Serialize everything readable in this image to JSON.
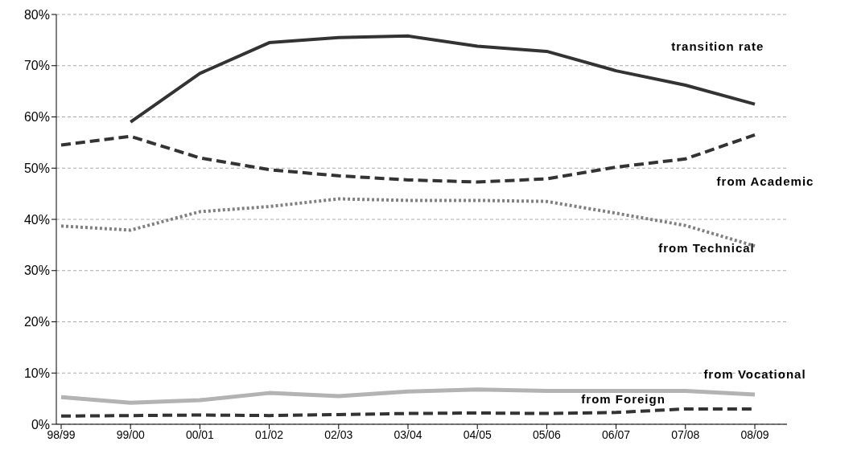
{
  "chart_data": {
    "type": "line",
    "categories": [
      "98/99",
      "99/00",
      "00/01",
      "01/02",
      "02/03",
      "03/04",
      "04/05",
      "05/06",
      "06/07",
      "07/08",
      "08/09"
    ],
    "ylim": [
      0,
      80
    ],
    "yticks": [
      {
        "value": 0,
        "label": "0%"
      },
      {
        "value": 10,
        "label": "10%"
      },
      {
        "value": 20,
        "label": "20%"
      },
      {
        "value": 30,
        "label": "30%"
      },
      {
        "value": 40,
        "label": "40%"
      },
      {
        "value": 50,
        "label": "50%"
      },
      {
        "value": 60,
        "label": "60%"
      },
      {
        "value": 70,
        "label": "70%"
      },
      {
        "value": 80,
        "label": "80%"
      }
    ],
    "grid": "y",
    "marker": "none",
    "series": [
      {
        "name": "transition rate",
        "color": "#333333",
        "line_style": "solid",
        "values": [
          null,
          59,
          68.5,
          74.5,
          75.5,
          75.8,
          73.8,
          72.8,
          69,
          66.2,
          62.5
        ]
      },
      {
        "name": "from Academic",
        "color": "#333333",
        "line_style": "dashed",
        "values": [
          54.5,
          56.2,
          52,
          49.7,
          48.5,
          47.7,
          47.3,
          47.9,
          50.2,
          51.8,
          56.5
        ]
      },
      {
        "name": "from Technical",
        "color": "#808080",
        "line_style": "dotted",
        "values": [
          38.7,
          37.9,
          41.5,
          42.5,
          44,
          43.7,
          43.7,
          43.5,
          41.2,
          38.8,
          34.8
        ]
      },
      {
        "name": "from Vocational",
        "color": "#b3b3b3",
        "line_style": "solid",
        "values": [
          5.3,
          4.2,
          4.7,
          6.1,
          5.5,
          6.4,
          6.8,
          6.5,
          6.5,
          6.5,
          5.8
        ]
      },
      {
        "name": "from Foreign",
        "color": "#333333",
        "line_style": "dashed",
        "values": [
          1.6,
          1.7,
          1.8,
          1.7,
          1.9,
          2.1,
          2.2,
          2.1,
          2.3,
          3.0,
          3.0
        ]
      }
    ]
  }
}
